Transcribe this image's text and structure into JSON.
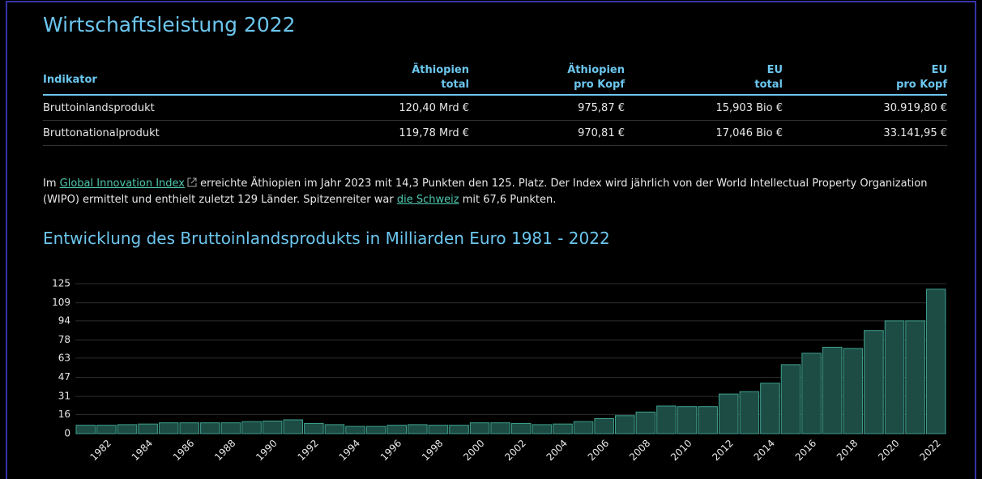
{
  "heading": "Wirtschaftsleistung 2022",
  "table": {
    "header": [
      [
        "Indikator"
      ],
      [
        "Äthiopien",
        "total"
      ],
      [
        "Äthiopien",
        "pro Kopf"
      ],
      [
        "EU",
        "total"
      ],
      [
        "EU",
        "pro Kopf"
      ]
    ],
    "rows": [
      [
        "Bruttoinlandsprodukt",
        "120,40 Mrd €",
        "975,87 €",
        "15,903 Bio €",
        "30.919,80 €"
      ],
      [
        "Bruttonationalprodukt",
        "119,78 Mrd €",
        "970,81 €",
        "17,046 Bio €",
        "33.141,95 €"
      ]
    ]
  },
  "paragraph": {
    "before": "Im",
    "link1": "Global Innovation Index",
    "middle": "erreichte Äthiopien im Jahr 2023 mit 14,3 Punkten den 125. Platz. Der Index wird jährlich von der World Intellectual Property Organization (WIPO) ermittelt und enthielt zuletzt 129 Länder. Spitzenreiter war",
    "link2": "die Schweiz",
    "after": "mit 67,6 Punkten."
  },
  "chart_data": {
    "type": "bar",
    "title": "Entwicklung des Bruttoinlandsprodukts in Milliarden Euro 1981 - 2022",
    "categories": [
      null,
      "1982",
      null,
      "1984",
      null,
      "1986",
      null,
      "1988",
      null,
      "1990",
      null,
      "1992",
      null,
      "1994",
      null,
      "1996",
      null,
      "1998",
      null,
      "2000",
      null,
      "2002",
      null,
      "2004",
      null,
      "2006",
      null,
      "2008",
      null,
      "2010",
      null,
      "2012",
      null,
      "2014",
      null,
      "2016",
      null,
      "2018",
      null,
      "2020",
      null,
      "2022"
    ],
    "values": [
      7,
      7,
      7.5,
      8,
      9,
      9,
      9,
      9,
      10,
      10.5,
      11.5,
      8.5,
      7.5,
      6,
      6,
      7,
      7.5,
      7,
      7,
      9,
      9,
      8.5,
      7.5,
      8,
      10,
      12.5,
      15,
      18,
      23,
      22.5,
      22.5,
      33,
      35,
      42,
      57.5,
      67,
      72,
      71,
      86,
      94,
      94,
      120.4
    ],
    "color": "#1d4c45",
    "ylim": [
      0,
      125
    ],
    "yticks": [
      0,
      16,
      31,
      47,
      63,
      78,
      94,
      109,
      125
    ],
    "grid": true
  }
}
